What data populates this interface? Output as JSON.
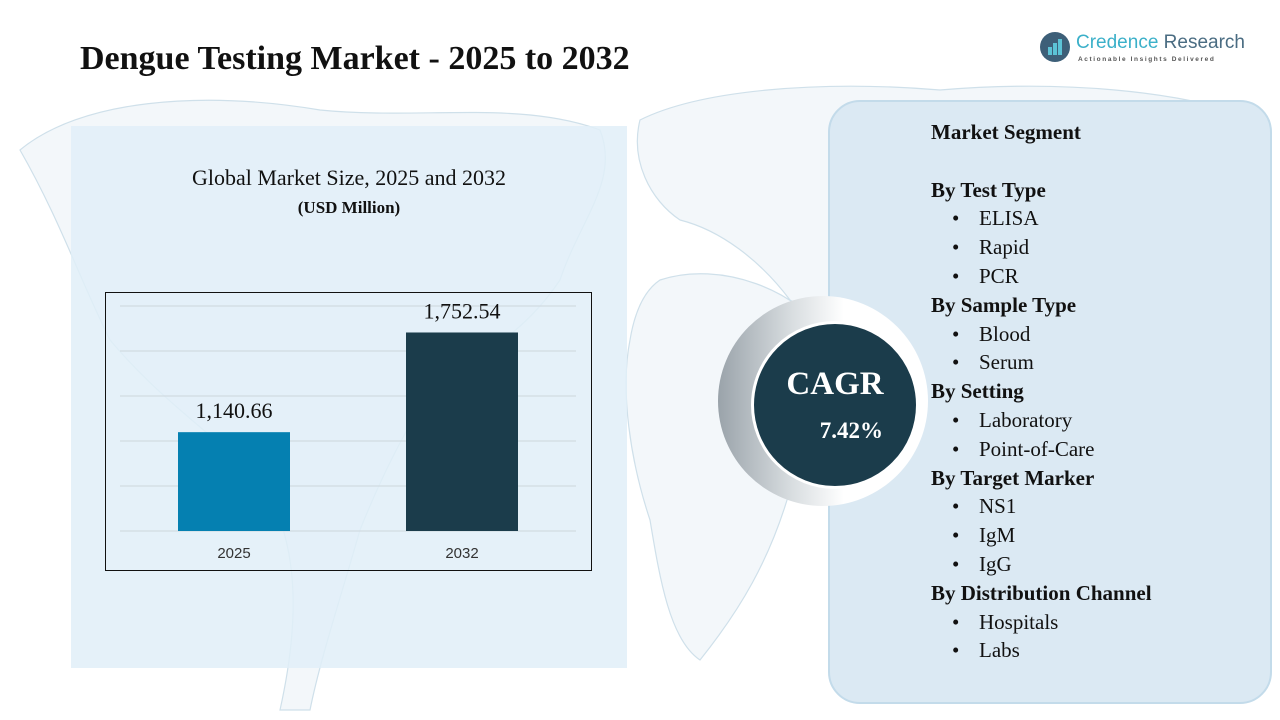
{
  "header": {
    "title": "Dengue Testing Market - 2025 to 2032"
  },
  "logo": {
    "name_part1": "Credence",
    "name_part2": " Research",
    "tagline": "Actionable Insights Delivered"
  },
  "chart_data": {
    "type": "bar",
    "title": "Global Market Size, 2025 and 2032",
    "subtitle": "(USD Million)",
    "categories": [
      "2025",
      "2032"
    ],
    "values": [
      1140.66,
      1752.54
    ],
    "data_labels": [
      "1,140.66",
      "1,752.54"
    ],
    "colors": [
      "#0580b1",
      "#1b3c4b"
    ],
    "ylim": [
      534,
      1909
    ],
    "grid": true,
    "legend": "none"
  },
  "cagr": {
    "label": "CAGR",
    "value": "7.42%"
  },
  "segments": {
    "title": "Market Segment",
    "groups": [
      {
        "heading": "By Test Type",
        "items": [
          "ELISA",
          "Rapid",
          "PCR"
        ]
      },
      {
        "heading": "By Sample Type",
        "items": [
          "Blood",
          "Serum"
        ]
      },
      {
        "heading": "By Setting",
        "items": [
          "Laboratory",
          "Point-of-Care"
        ]
      },
      {
        "heading": "By Target Marker",
        "items": [
          "NS1",
          "IgM",
          "IgG"
        ]
      },
      {
        "heading": "By Distribution Channel",
        "items": [
          "Hospitals",
          "Labs"
        ]
      }
    ]
  }
}
